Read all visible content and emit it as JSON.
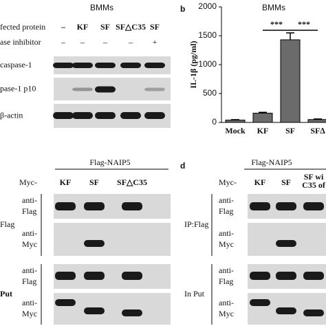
{
  "chart_data": {
    "type": "bar",
    "label": "b",
    "title": "BMMs",
    "y_label": "IL-1β (pg/ml)",
    "categories": [
      "Mock",
      "KF",
      "SF",
      "SF∆"
    ],
    "values": [
      40,
      160,
      1430,
      50
    ],
    "errors": [
      8,
      15,
      120,
      10
    ],
    "color": "#6b6b6b",
    "ylim": [
      0,
      2000
    ],
    "yticks": [
      0,
      500,
      1000,
      1500,
      2000
    ],
    "annotations": [
      "***",
      "***"
    ]
  },
  "panel_a": {
    "title": "BMMs",
    "rows": [
      {
        "label": "fected protein",
        "cells": [
          "–",
          "KF",
          "SF",
          "SF△C35",
          "SF"
        ]
      },
      {
        "label": "ase inhibitor",
        "cells": [
          "–",
          "–",
          "–",
          "–",
          "+"
        ]
      }
    ],
    "blots": [
      "caspase-1",
      "pase-1 p10",
      "β-actin"
    ]
  },
  "panel_c": {
    "title": "Flag-NAIP5",
    "myc": "Myc-",
    "columns": [
      "KF",
      "SF",
      "SF△C35"
    ],
    "groups": [
      {
        "label": "Flag",
        "blots": [
          [
            "anti-",
            "Flag"
          ],
          [
            "anti-",
            "Myc"
          ]
        ]
      },
      {
        "label": "Put",
        "blots": [
          [
            "anti-",
            "Flag"
          ],
          [
            "anti-",
            "Myc"
          ]
        ]
      }
    ]
  },
  "panel_d": {
    "label": "d",
    "title": "Flag-NAIP5",
    "myc": "Myc-",
    "columns": [
      "KF",
      "SF",
      "SF wi",
      "C35 of"
    ],
    "groups": [
      {
        "label": "IP:Flag",
        "blots": [
          [
            "anti-",
            "Flag"
          ],
          [
            "anti-",
            "Myc"
          ]
        ]
      },
      {
        "label": "In Put",
        "blots": [
          [
            "anti-",
            "Flag"
          ],
          [
            "anti-",
            "Myc"
          ]
        ]
      }
    ]
  }
}
